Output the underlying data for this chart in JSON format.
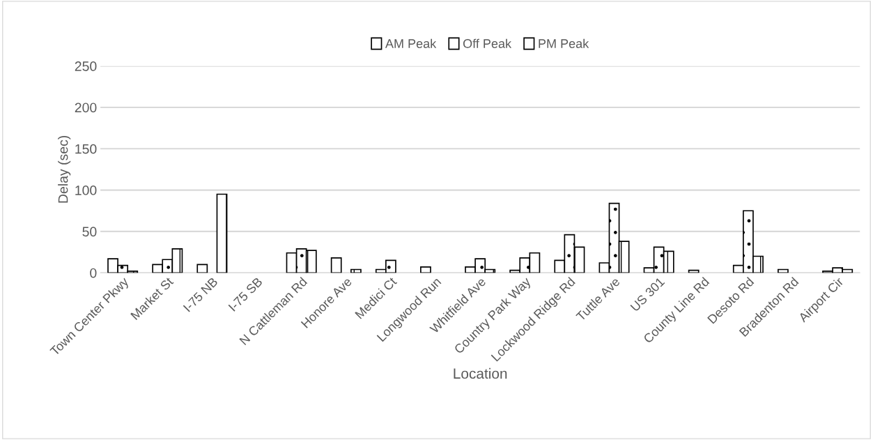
{
  "chart_data": {
    "type": "bar",
    "xlabel": "Location",
    "ylabel": "Delay (sec)",
    "categories": [
      "Town Center Pkwy",
      "Market St",
      "I-75 NB",
      "I-75 SB",
      "N Cattleman Rd",
      "Honore Ave",
      "Medici Ct",
      "Longwood Run",
      "Whitfield Ave",
      "Country Park Way",
      "Lockwood Ridge Rd",
      "Tuttle Ave",
      "US 301",
      "County Line Rd",
      "Desoto Rd",
      "Bradenton Rd",
      "Airport Cir"
    ],
    "series": [
      {
        "name": "AM Peak",
        "color": "#ffffff",
        "values": [
          17,
          10,
          10,
          null,
          24,
          18,
          4,
          7,
          7,
          3,
          15,
          12,
          6,
          3,
          9,
          4,
          2
        ]
      },
      {
        "name": "Off Peak",
        "color": "#ffffff",
        "values": [
          9,
          16,
          null,
          null,
          29,
          null,
          15,
          null,
          17,
          18,
          46,
          84,
          31,
          null,
          75,
          null,
          6
        ]
      },
      {
        "name": "PM Peak",
        "color": "#ffffff",
        "values": [
          2,
          29,
          95,
          null,
          27,
          4,
          null,
          null,
          4,
          24,
          31,
          38,
          26,
          null,
          20,
          null,
          4
        ]
      }
    ],
    "ylim": [
      0,
      250
    ],
    "yticks": [
      0,
      50,
      100,
      150,
      200,
      250
    ],
    "grid": "y",
    "legend": "top"
  }
}
